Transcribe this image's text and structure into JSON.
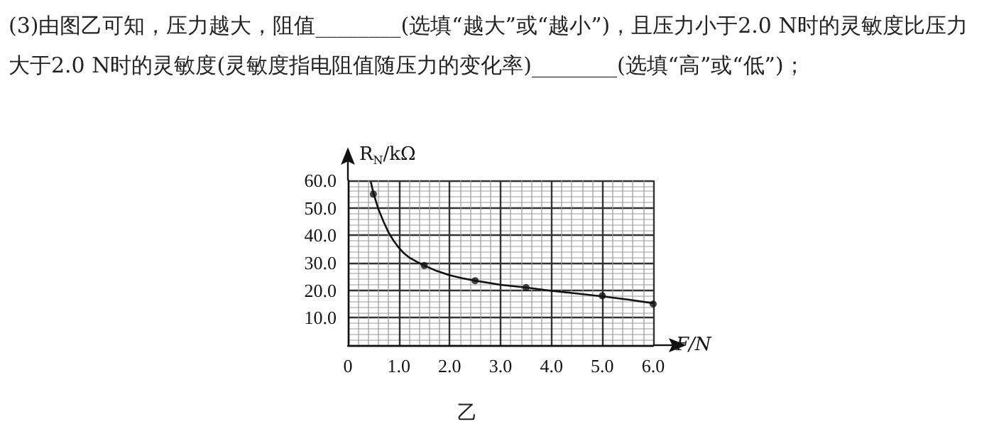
{
  "chart_data": {
    "type": "scatter",
    "xlabel": "F/N",
    "ylabel": "R$_{N}$/kΩ",
    "annotations": [
      "(3)由图乙可知，压力越大，阻值________(选填“越大”或“越小”)，且压力小于2.0 N时的灵敏度比压力大于2.0 N时的灵敏度(灵敏度指电阻值随压力的变化率)________(选填“高”或“低”)；",
      "乙"
    ],
    "series": [
      {
        "color": "#111111",
        "marker": "circle",
        "x": [
          0.5,
          1.5,
          2.5,
          3.5,
          5.0,
          6.0
        ],
        "values": [
          55,
          29,
          23.5,
          21,
          18,
          15
        ]
      },
      {
        "type": "line",
        "color": "#111111",
        "marker": "none",
        "x": [
          0.45,
          0.5,
          0.6,
          0.7,
          0.8,
          0.9,
          1.0,
          1.1,
          1.2,
          1.35,
          1.5,
          1.75,
          2.0,
          2.25,
          2.5,
          3.0,
          3.5,
          4.0,
          4.5,
          5.0,
          5.5,
          6.0
        ],
        "values": [
          59.5,
          55.5,
          49.5,
          45,
          41,
          38,
          35.5,
          33.5,
          32,
          30.4,
          29,
          27,
          25.5,
          24.4,
          23.5,
          22,
          21,
          19.8,
          18.8,
          17.8,
          16.6,
          15.3
        ]
      }
    ],
    "xlim": [
      0,
      6
    ],
    "ylim": [
      0,
      60
    ],
    "xticks": [
      0,
      {
        "value": 1,
        "label": "1.0"
      },
      {
        "value": 2,
        "label": "2.0"
      },
      {
        "value": 3,
        "label": "3.0"
      },
      {
        "value": 4,
        "label": "4.0"
      },
      {
        "value": 5,
        "label": "5.0"
      },
      {
        "value": 6,
        "label": "6.0"
      }
    ],
    "yticks": [
      {
        "value": 0,
        "label": null
      },
      {
        "value": 10,
        "label": "10.0"
      },
      {
        "value": 20,
        "label": "20.0"
      },
      {
        "value": 30,
        "label": "30.0"
      },
      {
        "value": 40,
        "label": "40.0"
      },
      {
        "value": 50,
        "label": "50.0"
      },
      {
        "value": 60,
        "label": "60.0"
      }
    ],
    "grid": true
  }
}
